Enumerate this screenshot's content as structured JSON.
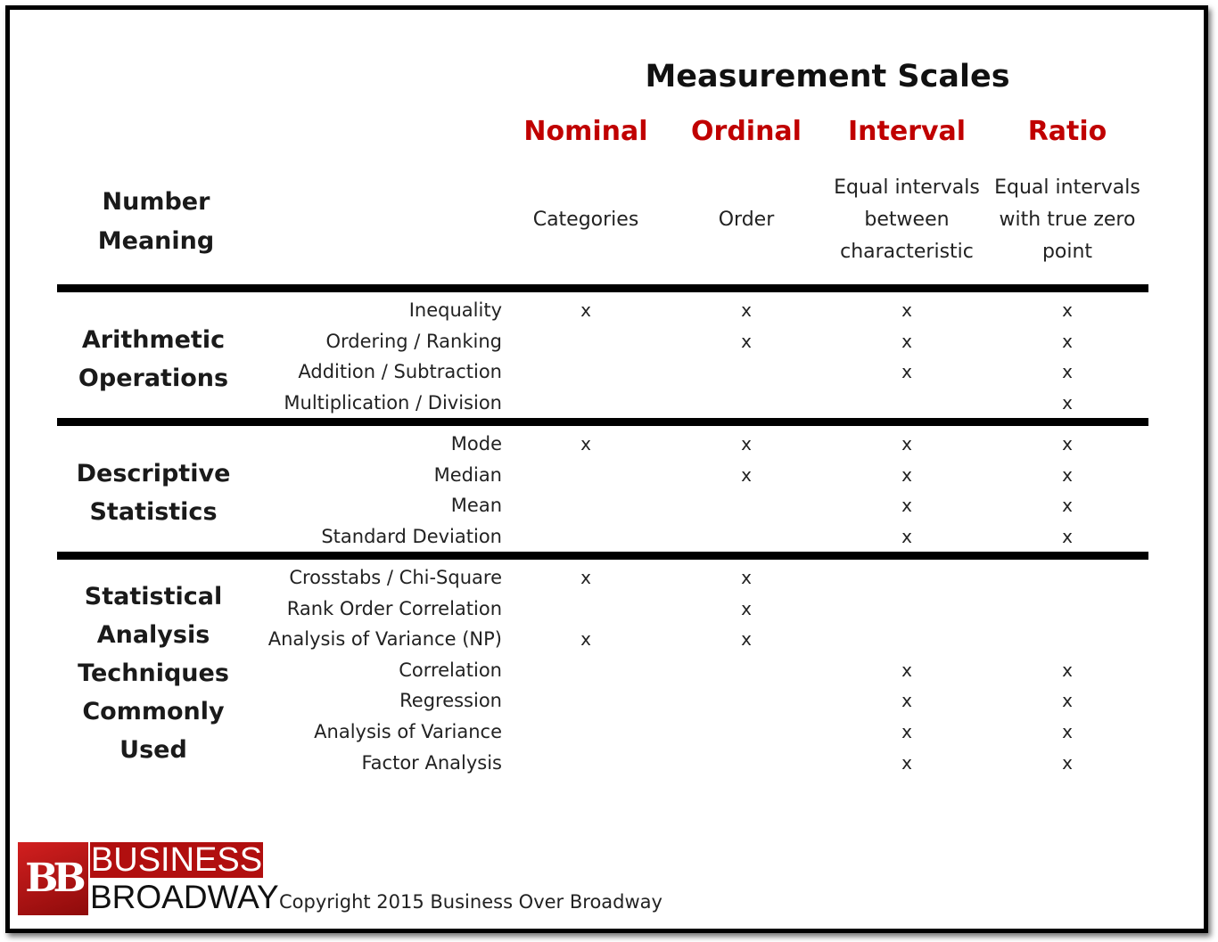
{
  "title": "Measurement Scales",
  "number_meaning_label": "Number\nMeaning",
  "scales": [
    {
      "name": "Nominal",
      "description": "Categories"
    },
    {
      "name": "Ordinal",
      "description": "Order"
    },
    {
      "name": "Interval",
      "description": "Equal intervals between characteristic"
    },
    {
      "name": "Ratio",
      "description": "Equal intervals with true zero point"
    }
  ],
  "mark_symbol": "x",
  "groups": [
    {
      "label": "Arithmetic\nOperations",
      "rows": [
        {
          "label": "Inequality",
          "marks": [
            true,
            true,
            true,
            true
          ]
        },
        {
          "label": "Ordering / Ranking",
          "marks": [
            false,
            true,
            true,
            true
          ]
        },
        {
          "label": "Addition / Subtraction",
          "marks": [
            false,
            false,
            true,
            true
          ]
        },
        {
          "label": "Multiplication / Division",
          "marks": [
            false,
            false,
            false,
            true
          ]
        }
      ]
    },
    {
      "label": "Descriptive\nStatistics",
      "rows": [
        {
          "label": "Mode",
          "marks": [
            true,
            true,
            true,
            true
          ]
        },
        {
          "label": "Median",
          "marks": [
            false,
            true,
            true,
            true
          ]
        },
        {
          "label": "Mean",
          "marks": [
            false,
            false,
            true,
            true
          ]
        },
        {
          "label": "Standard Deviation",
          "marks": [
            false,
            false,
            true,
            true
          ]
        }
      ]
    },
    {
      "label": "Statistical\nAnalysis\nTechniques\nCommonly\nUsed",
      "rows": [
        {
          "label": "Crosstabs / Chi-Square",
          "marks": [
            true,
            true,
            false,
            false
          ]
        },
        {
          "label": "Rank Order Correlation",
          "marks": [
            false,
            true,
            false,
            false
          ]
        },
        {
          "label": "Analysis of Variance (NP)",
          "marks": [
            true,
            true,
            false,
            false
          ]
        },
        {
          "label": "Correlation",
          "marks": [
            false,
            false,
            true,
            true
          ]
        },
        {
          "label": "Regression",
          "marks": [
            false,
            false,
            true,
            true
          ]
        },
        {
          "label": "Analysis of Variance",
          "marks": [
            false,
            false,
            true,
            true
          ]
        },
        {
          "label": "Factor Analysis",
          "marks": [
            false,
            false,
            true,
            true
          ]
        }
      ]
    }
  ],
  "logo": {
    "monogram": "BB",
    "line1": "BUSINESS",
    "line2": "BROADWAY"
  },
  "copyright": "Copyright 2015 Business Over Broadway",
  "colors": {
    "accent": "#c00000",
    "rule": "#000000"
  }
}
